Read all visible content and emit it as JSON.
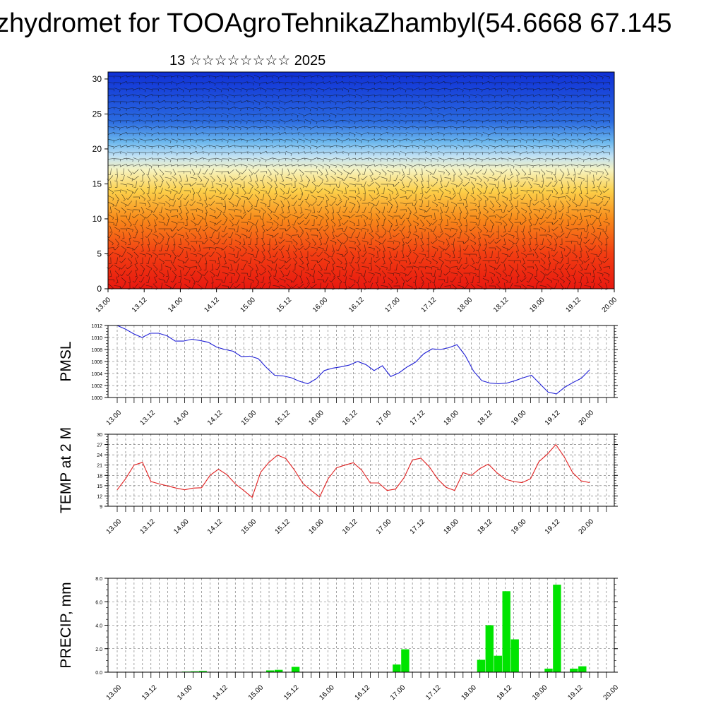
{
  "page": {
    "title": "zhydromet for TOOAgroTehnikaZhambyl(54.6668 67.145",
    "subtitle": "13 ☆☆☆☆☆☆☆☆ 2025"
  },
  "colors": {
    "pmsl_line": "#1f1fd6",
    "temp_line": "#e02020",
    "precip_bar": "#00e400",
    "profile_cold": "#1238d8",
    "profile_warm": "#e81e14"
  },
  "chart_data": [
    {
      "id": "profile",
      "type": "heatmap",
      "xlabel": "",
      "ylabel": "",
      "xticks": [
        "13.00",
        "13.12",
        "14.00",
        "14.12",
        "15.00",
        "15.12",
        "16.00",
        "16.12",
        "17.00",
        "17.12",
        "18.00",
        "18.12",
        "19.00",
        "19.12",
        "20.00"
      ],
      "yticks": [
        0,
        5,
        10,
        15,
        20,
        25,
        30
      ],
      "ylim": [
        0,
        31
      ],
      "levels_color": [
        {
          "y": 0,
          "color": "#e8180f"
        },
        {
          "y": 5,
          "color": "#f23d12"
        },
        {
          "y": 10,
          "color": "#f88a1a"
        },
        {
          "y": 14,
          "color": "#fcd04a"
        },
        {
          "y": 17,
          "color": "#f6f3c0"
        },
        {
          "y": 19,
          "color": "#bfe0f4"
        },
        {
          "y": 21,
          "color": "#6cb8ee"
        },
        {
          "y": 24,
          "color": "#2a6ae0"
        },
        {
          "y": 31,
          "color": "#0f2fd6"
        }
      ],
      "wind_barbs": true
    },
    {
      "id": "pmsl",
      "type": "line",
      "ylabel": "PMSL",
      "xticks": [
        "13.00",
        "13.12",
        "14.00",
        "14.12",
        "15.00",
        "15.12",
        "16.00",
        "16.12",
        "17.00",
        "17.12",
        "18.00",
        "18.12",
        "19.00",
        "19.12",
        "20.00"
      ],
      "yticks": [
        1000,
        1002,
        1004,
        1006,
        1008,
        1010,
        1012
      ],
      "ylim": [
        1000,
        1012
      ],
      "grid": true,
      "series": [
        {
          "values": [
            1012,
            1011.4,
            1010.6,
            1010.0,
            1010.7,
            1010.7,
            1010.3,
            1009.4,
            1009.4,
            1009.7,
            1009.5,
            1009.2,
            1008.4,
            1008.0,
            1007.7,
            1006.8,
            1006.9,
            1006.5,
            1005.0,
            1003.7,
            1003.6,
            1003.3,
            1002.7,
            1002.3,
            1003.1,
            1004.5,
            1004.9,
            1005.1,
            1005.4,
            1006.0,
            1005.5,
            1004.5,
            1005.3,
            1003.5,
            1004.1,
            1005.1,
            1005.9,
            1007.3,
            1008.1,
            1008.0,
            1008.3,
            1008.8,
            1007.0,
            1004.4,
            1002.8,
            1002.4,
            1002.3,
            1002.4,
            1002.8,
            1003.3,
            1003.7,
            1002.3,
            1000.9,
            1000.6,
            1001.7,
            1002.5,
            1003.2,
            1004.6
          ]
        }
      ]
    },
    {
      "id": "temp",
      "type": "line",
      "ylabel": "TEMP at 2 M",
      "xticks": [
        "13.00",
        "13.12",
        "14.00",
        "14.12",
        "15.00",
        "15.12",
        "16.00",
        "16.12",
        "17.00",
        "17.12",
        "18.00",
        "18.12",
        "19.00",
        "19.12",
        "20.00"
      ],
      "yticks": [
        9,
        12,
        15,
        18,
        21,
        24,
        27,
        30
      ],
      "ylim": [
        9,
        30
      ],
      "grid": true,
      "series": [
        {
          "values": [
            13.8,
            17.0,
            21.0,
            21.8,
            16.2,
            15.5,
            14.9,
            14.3,
            13.8,
            14.3,
            14.4,
            18.0,
            19.8,
            18.2,
            15.5,
            13.6,
            11.6,
            18.9,
            21.8,
            23.9,
            22.9,
            19.6,
            15.7,
            13.6,
            11.7,
            17.0,
            20.2,
            21.0,
            21.7,
            19.5,
            15.8,
            15.8,
            13.6,
            14.0,
            17.3,
            22.5,
            23.0,
            20.5,
            16.9,
            14.5,
            13.6,
            18.8,
            18.0,
            20.0,
            21.3,
            18.8,
            16.9,
            16.2,
            15.9,
            17.0,
            22.0,
            24.2,
            27.0,
            23.4,
            18.8,
            16.4,
            15.9
          ]
        }
      ]
    },
    {
      "id": "precip",
      "type": "bar",
      "ylabel": "PRECIP, mm",
      "xticks": [
        "13.00",
        "13.12",
        "14.00",
        "14.12",
        "15.00",
        "15.12",
        "16.00",
        "16.12",
        "17.00",
        "17.12",
        "18.00",
        "18.12",
        "19.00",
        "19.12",
        "20.00"
      ],
      "yticks": [
        "0.0",
        "2.0",
        "4.0",
        "6.0",
        "8.0"
      ],
      "ylim": [
        0,
        8
      ],
      "grid": true,
      "bar_step_hours": 3,
      "values": [
        0,
        0,
        0,
        0,
        0,
        0,
        0,
        0,
        0.05,
        0.07,
        0.1,
        0,
        0,
        0,
        0,
        0,
        0,
        0,
        0.15,
        0.2,
        0,
        0.45,
        0,
        0,
        0,
        0,
        0,
        0,
        0,
        0,
        0,
        0,
        0,
        0.65,
        1.95,
        0,
        0,
        0,
        0,
        0,
        0,
        0,
        0,
        1.05,
        4.0,
        1.4,
        6.9,
        2.8,
        0,
        0,
        0,
        0.3,
        7.45,
        0,
        0.3,
        0.5
      ]
    }
  ]
}
